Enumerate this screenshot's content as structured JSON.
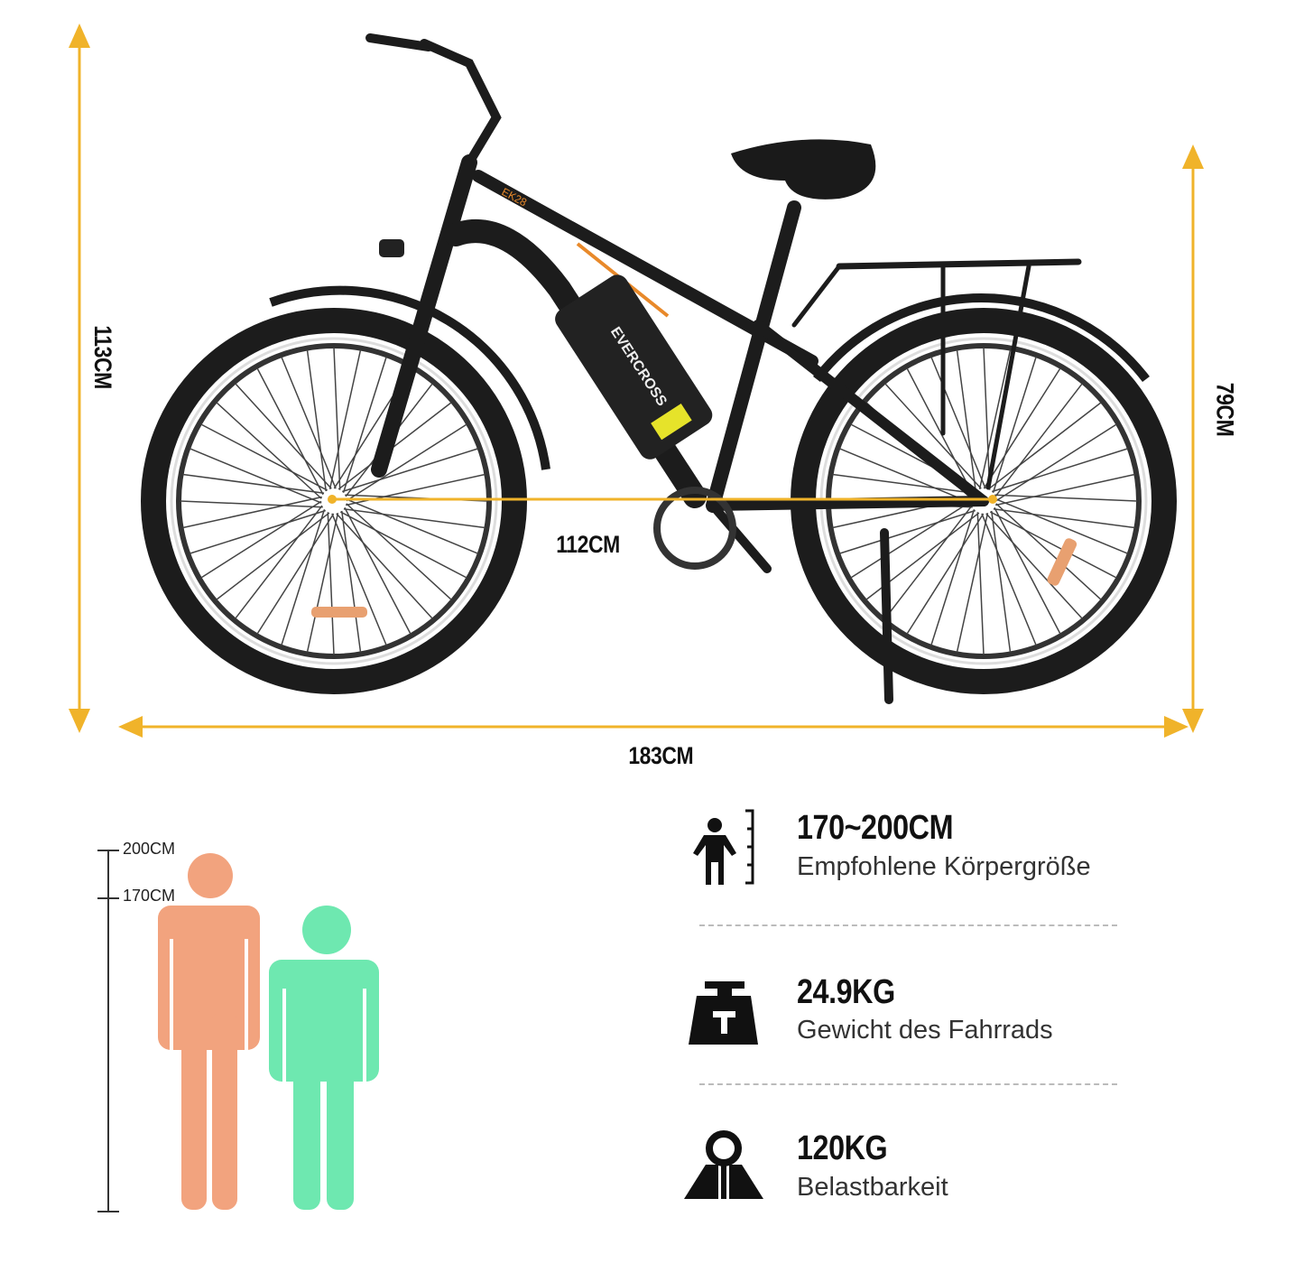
{
  "colors": {
    "dimension": "#F0B32A",
    "frame": "#1c1c1c",
    "accent": "#E8892A",
    "person_tall": "#F2A37E",
    "person_short": "#6EE8B0"
  },
  "bike": {
    "brand": "EVERCROSS",
    "model": "EK28"
  },
  "dimensions": {
    "height": "113CM",
    "wheelbase": "112CM",
    "seat_height": "79CM",
    "length": "183CM"
  },
  "height_scale": {
    "top": "200CM",
    "bottom": "170CM"
  },
  "specs": [
    {
      "icon": "person-height-icon",
      "value": "170~200CM",
      "label": "Empfohlene Körpergröße"
    },
    {
      "icon": "weight-icon",
      "value": "24.9KG",
      "label": "Gewicht des Fahrrads"
    },
    {
      "icon": "load-capacity-icon",
      "value": "120KG",
      "label": "Belastbarkeit"
    }
  ]
}
